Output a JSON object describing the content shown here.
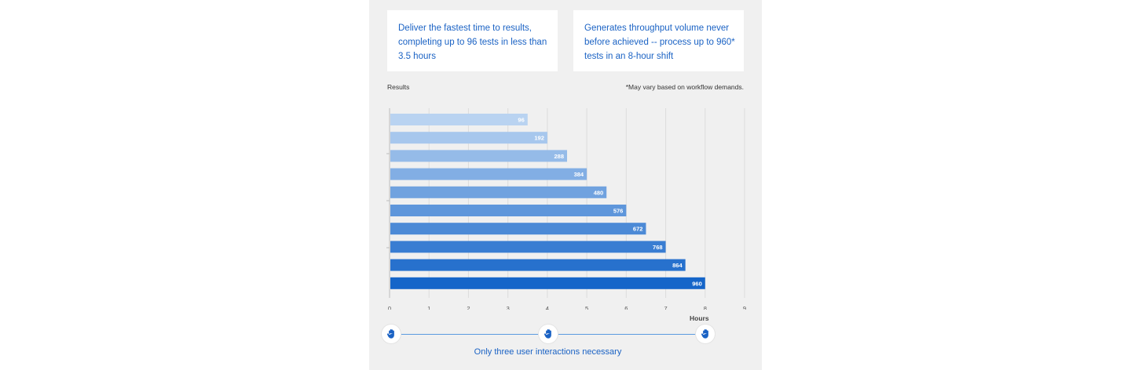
{
  "cards": {
    "left": "Deliver the fastest time to results, completing up to 96 tests in less than 3.5 hours",
    "right": "Generates throughput volume never before achieved -- process up to 960* tests in an 8-hour shift"
  },
  "y_axis_label": "Results",
  "footnote": "*May vary based on workflow demands.",
  "x_axis_label": "Hours",
  "caption": "Only three user interactions necessary",
  "icons": {
    "interaction": "hand-icon"
  },
  "colors": {
    "accent": "#1a62c4",
    "bar_light": "#b9d3f1",
    "bar_dark": "#1565c9"
  },
  "chart_data": {
    "type": "bar",
    "orientation": "horizontal",
    "series": [
      {
        "values": [
          3.5,
          4,
          4.5,
          5,
          5.5,
          6,
          6.5,
          7,
          7.5,
          8
        ],
        "labels": [
          "96",
          "192",
          "288",
          "384",
          "480",
          "576",
          "672",
          "768",
          "864",
          "960"
        ]
      }
    ],
    "xlabel": "Hours",
    "ylabel": "Results",
    "xlim": [
      0,
      9
    ],
    "x_ticks": [
      "0",
      "1",
      "2",
      "3",
      "4",
      "5",
      "6",
      "7",
      "8",
      "9"
    ],
    "grid": true
  }
}
